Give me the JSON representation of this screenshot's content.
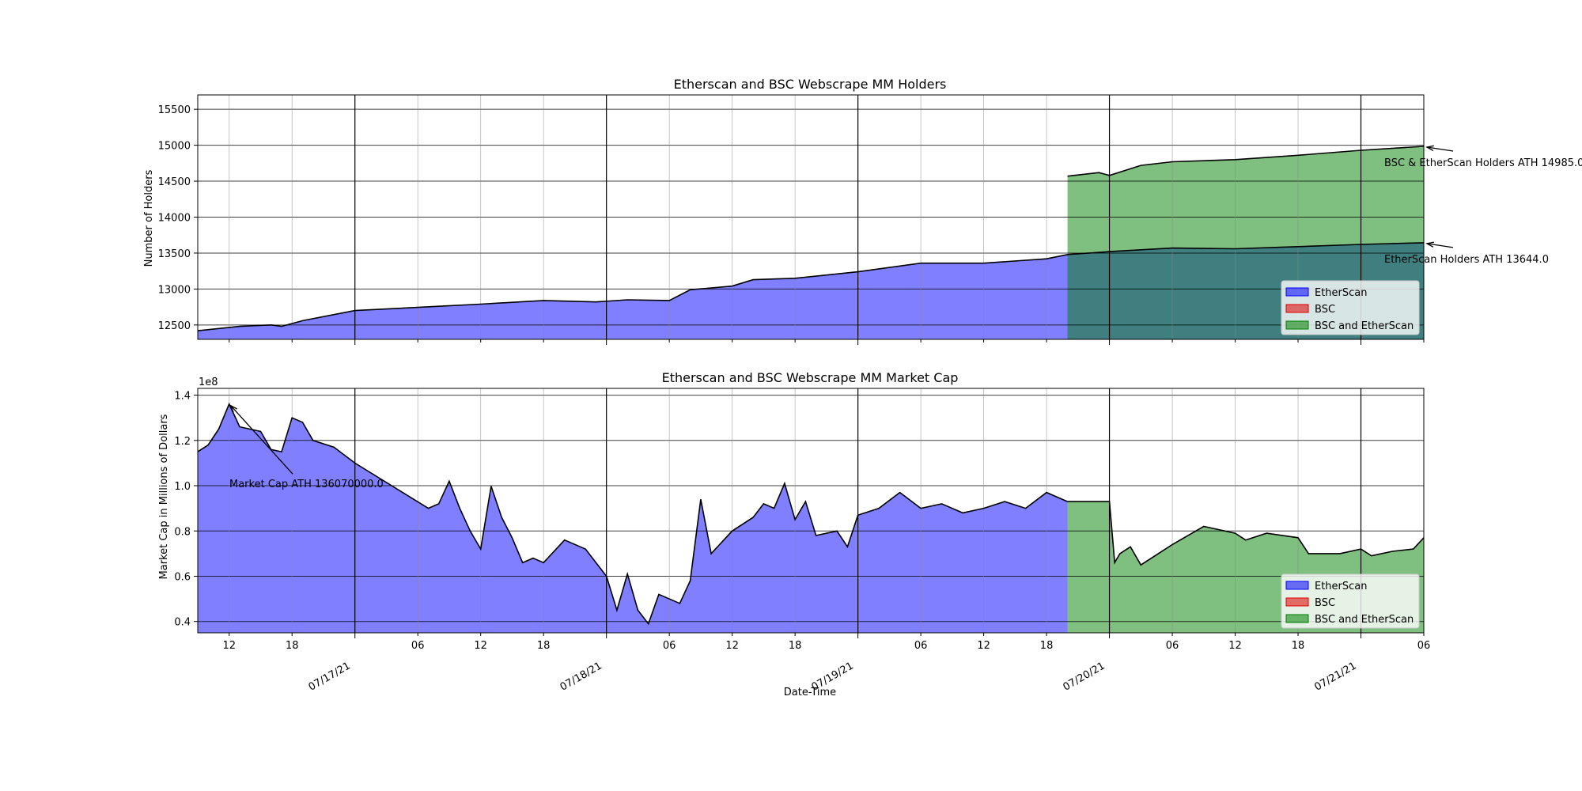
{
  "chart_data": [
    {
      "type": "area",
      "title": "Etherscan and BSC Webscrape MM Holders",
      "xlabel": "",
      "ylabel": "Number of Holders",
      "ylim": [
        12300,
        15700
      ],
      "yticks": [
        12500,
        13000,
        13500,
        14000,
        14500,
        15000,
        15500
      ],
      "xlim": [
        "2021-07-16 09:00",
        "2021-07-21 06:00"
      ],
      "grid": true,
      "legend": {
        "placement": "lower-right",
        "entries": [
          "EtherScan",
          "BSC",
          "BSC and EtherScan"
        ]
      },
      "colors": {
        "EtherScan": "#0000ff",
        "BSC": "#e00000",
        "BSC and EtherScan": "#008000"
      },
      "series": [
        {
          "name": "EtherScan",
          "points": [
            [
              "2021-07-16 09:00",
              12420
            ],
            [
              "2021-07-16 13:00",
              12480
            ],
            [
              "2021-07-16 16:00",
              12500
            ],
            [
              "2021-07-16 17:00",
              12480
            ],
            [
              "2021-07-16 19:00",
              12560
            ],
            [
              "2021-07-17 00:00",
              12700
            ],
            [
              "2021-07-17 08:00",
              12760
            ],
            [
              "2021-07-17 12:00",
              12790
            ],
            [
              "2021-07-17 18:00",
              12840
            ],
            [
              "2021-07-17 23:00",
              12820
            ],
            [
              "2021-07-18 02:00",
              12850
            ],
            [
              "2021-07-18 06:00",
              12840
            ],
            [
              "2021-07-18 08:00",
              12990
            ],
            [
              "2021-07-18 12:00",
              13040
            ],
            [
              "2021-07-18 14:00",
              13130
            ],
            [
              "2021-07-18 18:00",
              13150
            ],
            [
              "2021-07-19 00:00",
              13240
            ],
            [
              "2021-07-19 06:00",
              13360
            ],
            [
              "2021-07-19 12:00",
              13360
            ],
            [
              "2021-07-19 18:00",
              13420
            ],
            [
              "2021-07-19 20:00",
              13480
            ],
            [
              "2021-07-20 00:00",
              13520
            ],
            [
              "2021-07-20 06:00",
              13570
            ],
            [
              "2021-07-20 12:00",
              13560
            ],
            [
              "2021-07-20 18:00",
              13590
            ],
            [
              "2021-07-21 00:00",
              13620
            ],
            [
              "2021-07-21 06:00",
              13644
            ]
          ]
        },
        {
          "name": "BSC",
          "points": []
        },
        {
          "name": "BSC and EtherScan",
          "points": [
            [
              "2021-07-19 20:00",
              14570
            ],
            [
              "2021-07-19 23:00",
              14620
            ],
            [
              "2021-07-20 00:00",
              14580
            ],
            [
              "2021-07-20 03:00",
              14720
            ],
            [
              "2021-07-20 06:00",
              14770
            ],
            [
              "2021-07-20 12:00",
              14800
            ],
            [
              "2021-07-20 18:00",
              14860
            ],
            [
              "2021-07-21 00:00",
              14930
            ],
            [
              "2021-07-21 06:00",
              14985
            ]
          ]
        }
      ],
      "annotations": [
        {
          "text": "BSC & EtherScan Holders ATH 14985.0",
          "x": "2021-07-21 06:00",
          "y": 14985
        },
        {
          "text": "EtherScan Holders ATH 13644.0",
          "x": "2021-07-21 06:00",
          "y": 13644
        }
      ]
    },
    {
      "type": "area",
      "title": "Etherscan and BSC Webscrape MM Market Cap",
      "xlabel": "Date-Time",
      "ylabel": "Market Cap in Millions of Dollars",
      "scale_note": "1e8",
      "ylim": [
        0.35,
        1.43
      ],
      "yticks": [
        0.4,
        0.6,
        0.8,
        1.0,
        1.2,
        1.4
      ],
      "ytick_labels": [
        "0.4",
        "0.6",
        "0.8",
        "1.0",
        "1.2",
        "1.4"
      ],
      "xlim": [
        "2021-07-16 09:00",
        "2021-07-21 06:00"
      ],
      "xticks_major": [
        "2021-07-17 00:00",
        "2021-07-18 00:00",
        "2021-07-19 00:00",
        "2021-07-20 00:00",
        "2021-07-21 00:00"
      ],
      "xtick_major_labels": [
        "07/17/21",
        "07/18/21",
        "07/19/21",
        "07/20/21",
        "07/21/21"
      ],
      "xticks_minor": [
        "2021-07-16 12:00",
        "2021-07-16 18:00",
        "2021-07-17 06:00",
        "2021-07-17 12:00",
        "2021-07-17 18:00",
        "2021-07-18 06:00",
        "2021-07-18 12:00",
        "2021-07-18 18:00",
        "2021-07-19 06:00",
        "2021-07-19 12:00",
        "2021-07-19 18:00",
        "2021-07-20 06:00",
        "2021-07-20 12:00",
        "2021-07-20 18:00",
        "2021-07-21 06:00"
      ],
      "xtick_minor_labels": [
        "12",
        "18",
        "06",
        "12",
        "18",
        "06",
        "12",
        "18",
        "06",
        "12",
        "18",
        "06",
        "12",
        "18",
        "06"
      ],
      "grid": true,
      "legend": {
        "placement": "lower-right",
        "entries": [
          "EtherScan",
          "BSC",
          "BSC and EtherScan"
        ]
      },
      "colors": {
        "EtherScan": "#0000ff",
        "BSC": "#e00000",
        "BSC and EtherScan": "#008000"
      },
      "series": [
        {
          "name": "EtherScan",
          "points": [
            [
              "2021-07-16 09:00",
              1.15
            ],
            [
              "2021-07-16 10:00",
              1.18
            ],
            [
              "2021-07-16 11:00",
              1.25
            ],
            [
              "2021-07-16 12:00",
              1.3607
            ],
            [
              "2021-07-16 13:00",
              1.26
            ],
            [
              "2021-07-16 15:00",
              1.24
            ],
            [
              "2021-07-16 16:00",
              1.16
            ],
            [
              "2021-07-16 17:00",
              1.15
            ],
            [
              "2021-07-16 18:00",
              1.3
            ],
            [
              "2021-07-16 19:00",
              1.28
            ],
            [
              "2021-07-16 20:00",
              1.2
            ],
            [
              "2021-07-16 22:00",
              1.17
            ],
            [
              "2021-07-17 00:00",
              1.1
            ],
            [
              "2021-07-17 07:00",
              0.9
            ],
            [
              "2021-07-17 08:00",
              0.92
            ],
            [
              "2021-07-17 09:00",
              1.02
            ],
            [
              "2021-07-17 10:00",
              0.9
            ],
            [
              "2021-07-17 11:00",
              0.8
            ],
            [
              "2021-07-17 12:00",
              0.72
            ],
            [
              "2021-07-17 13:00",
              0.998
            ],
            [
              "2021-07-17 14:00",
              0.86
            ],
            [
              "2021-07-17 15:00",
              0.77
            ],
            [
              "2021-07-17 16:00",
              0.66
            ],
            [
              "2021-07-17 17:00",
              0.68
            ],
            [
              "2021-07-17 18:00",
              0.66
            ],
            [
              "2021-07-17 20:00",
              0.76
            ],
            [
              "2021-07-17 22:00",
              0.72
            ],
            [
              "2021-07-18 00:00",
              0.6
            ],
            [
              "2021-07-18 01:00",
              0.45
            ],
            [
              "2021-07-18 02:00",
              0.61
            ],
            [
              "2021-07-18 03:00",
              0.45
            ],
            [
              "2021-07-18 04:00",
              0.39
            ],
            [
              "2021-07-18 05:00",
              0.52
            ],
            [
              "2021-07-18 07:00",
              0.48
            ],
            [
              "2021-07-18 08:00",
              0.58
            ],
            [
              "2021-07-18 09:00",
              0.94
            ],
            [
              "2021-07-18 10:00",
              0.7
            ],
            [
              "2021-07-18 12:00",
              0.8
            ],
            [
              "2021-07-18 14:00",
              0.86
            ],
            [
              "2021-07-18 15:00",
              0.92
            ],
            [
              "2021-07-18 16:00",
              0.9
            ],
            [
              "2021-07-18 17:00",
              1.01
            ],
            [
              "2021-07-18 18:00",
              0.85
            ],
            [
              "2021-07-18 19:00",
              0.93
            ],
            [
              "2021-07-18 20:00",
              0.78
            ],
            [
              "2021-07-18 22:00",
              0.8
            ],
            [
              "2021-07-18 23:00",
              0.73
            ],
            [
              "2021-07-19 00:00",
              0.87
            ],
            [
              "2021-07-19 02:00",
              0.9
            ],
            [
              "2021-07-19 04:00",
              0.97
            ],
            [
              "2021-07-19 06:00",
              0.9
            ],
            [
              "2021-07-19 08:00",
              0.92
            ],
            [
              "2021-07-19 10:00",
              0.88
            ],
            [
              "2021-07-19 12:00",
              0.9
            ],
            [
              "2021-07-19 14:00",
              0.93
            ],
            [
              "2021-07-19 16:00",
              0.9
            ],
            [
              "2021-07-19 18:00",
              0.97
            ],
            [
              "2021-07-19 20:00",
              0.93
            ]
          ]
        },
        {
          "name": "BSC",
          "points": []
        },
        {
          "name": "BSC and EtherScan",
          "points": [
            [
              "2021-07-19 20:00",
              0.93
            ],
            [
              "2021-07-19 22:00",
              0.93
            ],
            [
              "2021-07-20 00:00",
              0.93
            ],
            [
              "2021-07-20 00:30",
              0.66
            ],
            [
              "2021-07-20 01:00",
              0.7
            ],
            [
              "2021-07-20 02:00",
              0.73
            ],
            [
              "2021-07-20 03:00",
              0.65
            ],
            [
              "2021-07-20 06:00",
              0.74
            ],
            [
              "2021-07-20 09:00",
              0.82
            ],
            [
              "2021-07-20 12:00",
              0.79
            ],
            [
              "2021-07-20 13:00",
              0.76
            ],
            [
              "2021-07-20 15:00",
              0.79
            ],
            [
              "2021-07-20 18:00",
              0.77
            ],
            [
              "2021-07-20 19:00",
              0.7
            ],
            [
              "2021-07-20 22:00",
              0.7
            ],
            [
              "2021-07-21 00:00",
              0.72
            ],
            [
              "2021-07-21 01:00",
              0.69
            ],
            [
              "2021-07-21 03:00",
              0.71
            ],
            [
              "2021-07-21 05:00",
              0.72
            ],
            [
              "2021-07-21 06:00",
              0.77
            ]
          ]
        }
      ],
      "annotations": [
        {
          "text": "Market Cap ATH 136070000.0",
          "x": "2021-07-16 12:00",
          "y": 1.3607
        }
      ]
    }
  ]
}
